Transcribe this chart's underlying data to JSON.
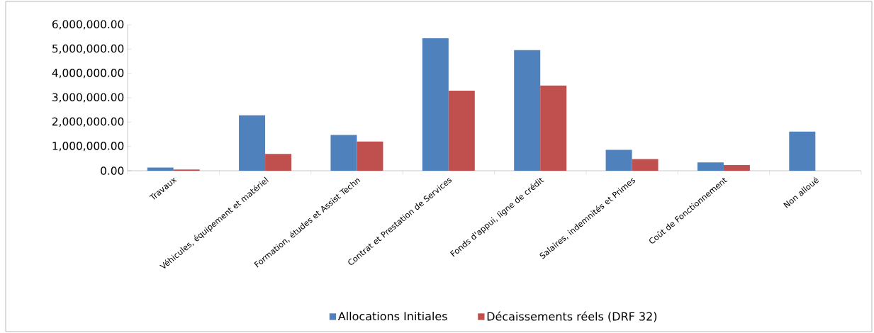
{
  "chart_data": {
    "type": "bar",
    "categories": [
      "Travaux",
      "Véhicules, équipement et matériel",
      "Formation, études et Assist Techn",
      "Contrat et Prestation de Services",
      "Fonds d'appui,  ligne de crédit",
      "Salaires, indemnités et Primes",
      "Coût de Fonctionnement",
      "Non alloué"
    ],
    "series": [
      {
        "name": "Allocations Initiales",
        "color": "#4f81bd",
        "values": [
          130000,
          2280000,
          1470000,
          5450000,
          4960000,
          860000,
          340000,
          1610000
        ]
      },
      {
        "name": "Décaissements réels (DRF 32)",
        "color": "#c0504d",
        "values": [
          50000,
          690000,
          1200000,
          3290000,
          3510000,
          480000,
          230000,
          null
        ]
      }
    ],
    "ylim": [
      0,
      6000000
    ],
    "yticks": [
      {
        "value": 0,
        "label": "0.00"
      },
      {
        "value": 1000000,
        "label": "1,000,000.00"
      },
      {
        "value": 2000000,
        "label": "2,000,000.00"
      },
      {
        "value": 3000000,
        "label": "3,000,000.00"
      },
      {
        "value": 4000000,
        "label": "4,000,000.00"
      },
      {
        "value": 5000000,
        "label": "5,000,000.00"
      },
      {
        "value": 6000000,
        "label": "6,000,000.00"
      }
    ],
    "grid": false,
    "legend": "bottom"
  }
}
